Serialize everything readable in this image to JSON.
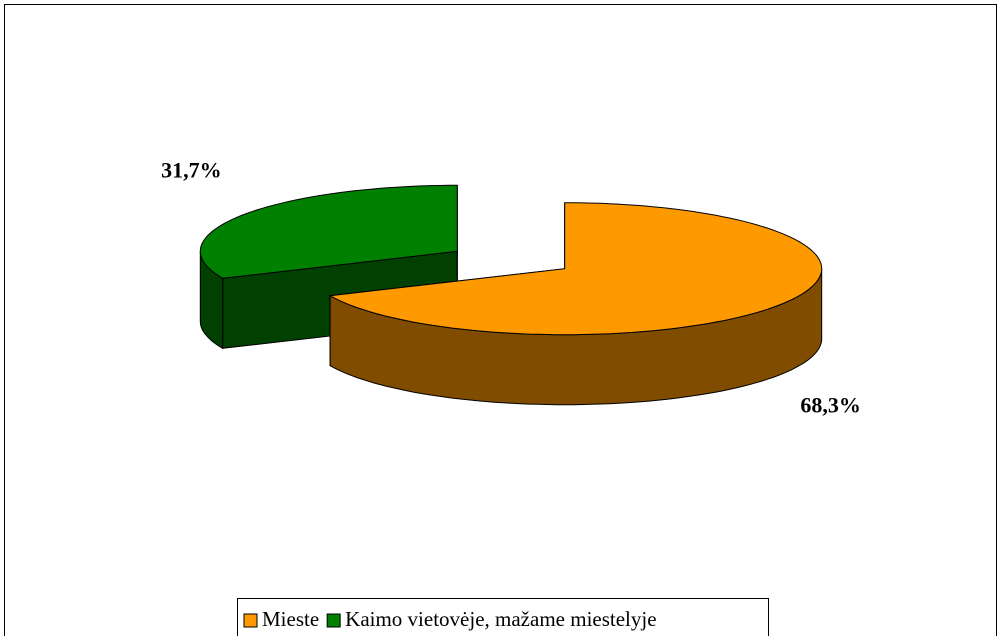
{
  "chart_data": {
    "type": "pie3d",
    "categories": [
      "Mieste",
      "Kaimo vietovėje, mažame miestelyje"
    ],
    "values": [
      68.3,
      31.7
    ],
    "value_labels": [
      "68,3%",
      "31,7%"
    ],
    "colors": [
      "#FF9900",
      "#008000"
    ],
    "side_colors": [
      "#7F4C00",
      "#004000"
    ],
    "legend": "bottom"
  }
}
